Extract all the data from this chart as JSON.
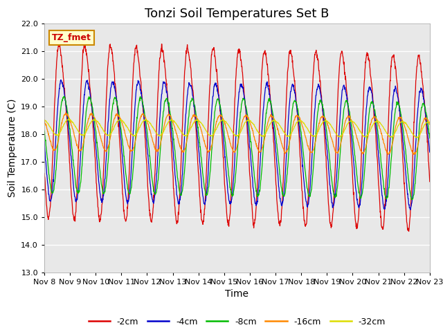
{
  "title": "Tonzi Soil Temperatures Set B",
  "xlabel": "Time",
  "ylabel": "Soil Temperature (C)",
  "ylim": [
    13.0,
    22.0
  ],
  "yticks": [
    13.0,
    14.0,
    15.0,
    16.0,
    17.0,
    18.0,
    19.0,
    20.0,
    21.0,
    22.0
  ],
  "xtick_labels": [
    "Nov 8",
    "Nov 9",
    "Nov 10",
    "Nov 11",
    "Nov 12",
    "Nov 13",
    "Nov 14",
    "Nov 15",
    "Nov 16",
    "Nov 17",
    "Nov 18",
    "Nov 19",
    "Nov 20",
    "Nov 21",
    "Nov 22",
    "Nov 23"
  ],
  "annotation_text": "TZ_fmet",
  "annotation_color": "#cc0000",
  "annotation_bg": "#ffffcc",
  "annotation_border": "#cc8800",
  "series_colors": [
    "#dd0000",
    "#0000cc",
    "#00bb00",
    "#ff8800",
    "#dddd00"
  ],
  "series_labels": [
    "-2cm",
    "-4cm",
    "-8cm",
    "-16cm",
    "-32cm"
  ],
  "plot_bg": "#e8e8e8",
  "n_days": 15,
  "n_points_per_day": 96,
  "title_fontsize": 13,
  "axis_label_fontsize": 10,
  "tick_fontsize": 8
}
